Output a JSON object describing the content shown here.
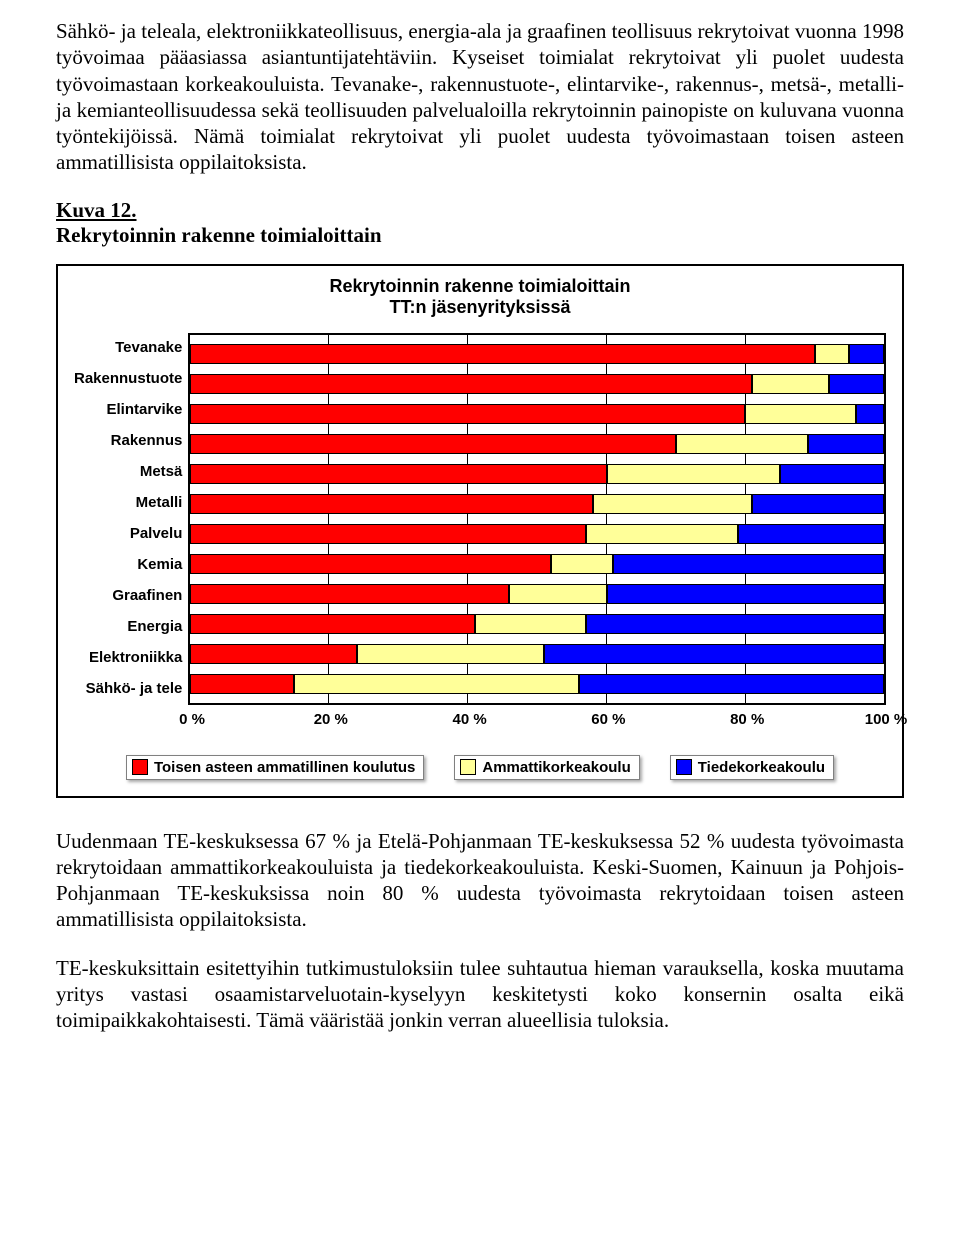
{
  "paragraphs": {
    "p1": "Sähkö- ja teleala, elektroniikkateollisuus, energia-ala ja graafinen teollisuus rekrytoivat vuonna 1998 työvoimaa pääasiassa asiantuntijatehtäviin. Kyseiset toimialat rekrytoivat yli puolet uudesta työvoimastaan korkeakouluista. Tevanake-, rakennustuote-, elintarvike-, rakennus-, metsä-, metalli- ja kemianteollisuudessa sekä teollisuuden palvelualoilla rekrytoinnin painopiste on kuluvana vuonna työntekijöissä. Nämä toimialat rekrytoivat yli puolet uudesta työvoimastaan toisen asteen ammatillisista oppilaitoksista.",
    "kuva_label": "Kuva 12.",
    "kuva_title": "Rekrytoinnin rakenne toimialoittain",
    "p2": "Uudenmaan TE-keskuksessa 67 % ja Etelä-Pohjanmaan TE-keskuksessa 52 % uudesta työvoimasta rekrytoidaan ammattikorkeakouluista ja tiedekorkeakouluista. Keski-Suomen, Kainuun ja Pohjois-Pohjanmaan TE-keskuksissa noin 80 % uudesta työvoimasta rekrytoidaan toisen asteen ammatillisista oppilaitoksista.",
    "p3": "TE-keskuksittain esitettyihin tutkimustuloksiin tulee suhtautua hieman varauksella, koska muutama yritys vastasi osaamistarveluotain-kyselyyn keskitetysti koko konsernin osalta eikä toimipaikkakohtaisesti. Tämä vääristää jonkin verran alueellisia tuloksia."
  },
  "chart": {
    "type": "stacked-bar-horizontal",
    "title_line1": "Rekrytoinnin rakenne toimialoittain",
    "title_line2": "TT:n jäsenyrityksissä",
    "xlim": [
      0,
      100
    ],
    "xtick_step": 20,
    "xticks": [
      "0 %",
      "20 %",
      "40 %",
      "60 %",
      "80 %",
      "100 %"
    ],
    "colors": {
      "toisen": "#ff0000",
      "amk": "#ffff99",
      "tiede": "#0000ff",
      "grid": "#000000",
      "bg": "#ffffff"
    },
    "legend": [
      {
        "label": "Toisen asteen ammatillinen koulutus",
        "color": "#ff0000"
      },
      {
        "label": "Ammattikorkeakoulu",
        "color": "#ffff99"
      },
      {
        "label": "Tiedekorkeakoulu",
        "color": "#0000ff"
      }
    ],
    "categories": [
      {
        "label": "Tevanake",
        "values": [
          90,
          5,
          5
        ]
      },
      {
        "label": "Rakennustuote",
        "values": [
          81,
          11,
          8
        ]
      },
      {
        "label": "Elintarvike",
        "values": [
          80,
          16,
          4
        ]
      },
      {
        "label": "Rakennus",
        "values": [
          70,
          19,
          11
        ]
      },
      {
        "label": "Metsä",
        "values": [
          60,
          25,
          15
        ]
      },
      {
        "label": "Metalli",
        "values": [
          58,
          23,
          19
        ]
      },
      {
        "label": "Palvelu",
        "values": [
          57,
          22,
          21
        ]
      },
      {
        "label": "Kemia",
        "values": [
          52,
          9,
          39
        ]
      },
      {
        "label": "Graafinen",
        "values": [
          46,
          14,
          40
        ]
      },
      {
        "label": "Energia",
        "values": [
          41,
          16,
          43
        ]
      },
      {
        "label": "Elektroniikka",
        "values": [
          24,
          27,
          49
        ]
      },
      {
        "label": "Sähkö- ja tele",
        "values": [
          15,
          41,
          44
        ]
      }
    ],
    "label_fontfamily": "Arial",
    "label_fontsize": 15,
    "label_fontweight": "bold",
    "title_fontsize": 18
  }
}
